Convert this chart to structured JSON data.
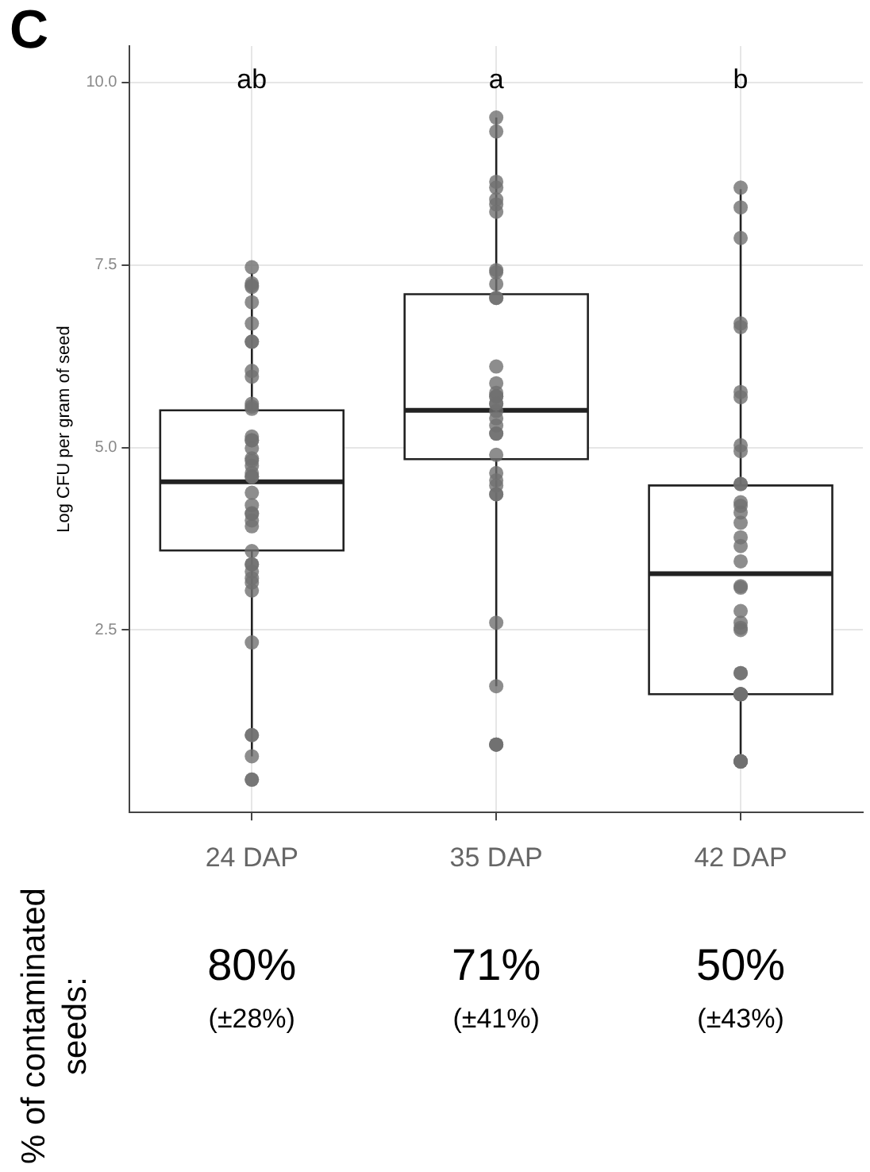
{
  "chart_data": {
    "type": "box",
    "title": "C",
    "ylabel": "Log CFU per gram of seed",
    "categories": [
      "24 DAP",
      "35 DAP",
      "42 DAP"
    ],
    "boxes": [
      {
        "low": 0.77,
        "q1": 3.59,
        "median": 4.53,
        "q3": 5.51,
        "high": 7.39
      },
      {
        "low": 1.73,
        "q1": 4.84,
        "median": 5.51,
        "q3": 7.1,
        "high": 9.52
      },
      {
        "low": 0.72,
        "q1": 1.62,
        "median": 3.27,
        "q3": 4.48,
        "high": 8.54
      }
    ],
    "series": [
      {
        "type": "scatter",
        "color": "#707070",
        "x": [
          "24 DAP",
          "24 DAP",
          "24 DAP",
          "24 DAP",
          "24 DAP",
          "24 DAP",
          "24 DAP",
          "24 DAP",
          "24 DAP",
          "24 DAP",
          "24 DAP",
          "24 DAP",
          "24 DAP",
          "24 DAP",
          "24 DAP",
          "24 DAP",
          "24 DAP",
          "24 DAP",
          "24 DAP",
          "24 DAP",
          "24 DAP",
          "24 DAP",
          "24 DAP",
          "24 DAP",
          "24 DAP",
          "24 DAP",
          "24 DAP",
          "24 DAP",
          "24 DAP",
          "24 DAP",
          "24 DAP",
          "24 DAP",
          "24 DAP",
          "24 DAP",
          "24 DAP",
          "24 DAP",
          "24 DAP",
          "24 DAP",
          "24 DAP",
          "24 DAP",
          "24 DAP",
          "24 DAP",
          "35 DAP",
          "35 DAP",
          "35 DAP",
          "35 DAP",
          "35 DAP",
          "35 DAP",
          "35 DAP",
          "35 DAP",
          "35 DAP",
          "35 DAP",
          "35 DAP",
          "35 DAP",
          "35 DAP",
          "35 DAP",
          "35 DAP",
          "35 DAP",
          "35 DAP",
          "35 DAP",
          "35 DAP",
          "35 DAP",
          "35 DAP",
          "35 DAP",
          "35 DAP",
          "35 DAP",
          "35 DAP",
          "35 DAP",
          "35 DAP",
          "35 DAP",
          "35 DAP",
          "35 DAP",
          "35 DAP",
          "35 DAP",
          "35 DAP",
          "35 DAP",
          "35 DAP",
          "42 DAP",
          "42 DAP",
          "42 DAP",
          "42 DAP",
          "42 DAP",
          "42 DAP",
          "42 DAP",
          "42 DAP",
          "42 DAP",
          "42 DAP",
          "42 DAP",
          "42 DAP",
          "42 DAP",
          "42 DAP",
          "42 DAP",
          "42 DAP",
          "42 DAP",
          "42 DAP",
          "42 DAP",
          "42 DAP",
          "42 DAP",
          "42 DAP",
          "42 DAP",
          "42 DAP",
          "42 DAP",
          "42 DAP",
          "42 DAP",
          "42 DAP",
          "42 DAP",
          "42 DAP",
          "42 DAP",
          "42 DAP",
          "42 DAP",
          "42 DAP",
          "42 DAP",
          "42 DAP"
        ],
        "values": [
          7.47,
          6.99,
          7.25,
          7.22,
          7.2,
          6.7,
          6.45,
          6.45,
          5.97,
          6.05,
          5.6,
          5.53,
          5.56,
          5.15,
          4.99,
          4.82,
          4.75,
          4.65,
          4.6,
          4.38,
          4.21,
          4.09,
          4.1,
          4.0,
          3.92,
          5.1,
          5.1,
          4.85,
          4.6,
          3.58,
          3.4,
          3.3,
          3.15,
          3.4,
          3.21,
          3.04,
          2.33,
          1.06,
          1.06,
          0.77,
          0.45,
          0.45,
          9.52,
          9.33,
          8.64,
          8.56,
          8.33,
          8.4,
          8.23,
          7.43,
          7.4,
          7.24,
          7.05,
          7.05,
          6.11,
          5.88,
          5.75,
          5.7,
          5.6,
          5.7,
          5.6,
          5.5,
          5.4,
          5.3,
          5.19,
          5.19,
          4.9,
          4.65,
          4.48,
          4.36,
          4.55,
          4.36,
          2.6,
          1.73,
          0.93,
          0.93,
          0.93,
          8.56,
          8.29,
          7.87,
          6.7,
          6.65,
          5.76,
          5.69,
          5.03,
          4.95,
          4.5,
          4.5,
          4.25,
          4.2,
          4.11,
          3.97,
          3.77,
          3.65,
          3.44,
          3.08,
          3.1,
          2.76,
          2.53,
          2.5,
          2.6,
          1.91,
          1.91,
          1.62,
          1.62,
          1.62,
          1.62,
          1.62,
          0.7,
          0.7,
          0.7,
          0.7,
          0.7
        ]
      }
    ],
    "ylim": [
      0,
      10.5
    ],
    "yticks": [
      {
        "value": 2.5,
        "label": "2.5"
      },
      {
        "value": 5,
        "label": "5.0"
      },
      {
        "value": 7.5,
        "label": "7.5"
      },
      {
        "value": 10,
        "label": "10.0"
      }
    ],
    "grid": true,
    "legend": false,
    "marker": "circle",
    "annotations": [
      "ab",
      "a",
      "b",
      "80%",
      "(±28%)",
      "71%",
      "(±41%)",
      "50%",
      "(±43%)",
      "% of contaminated seeds:"
    ]
  }
}
